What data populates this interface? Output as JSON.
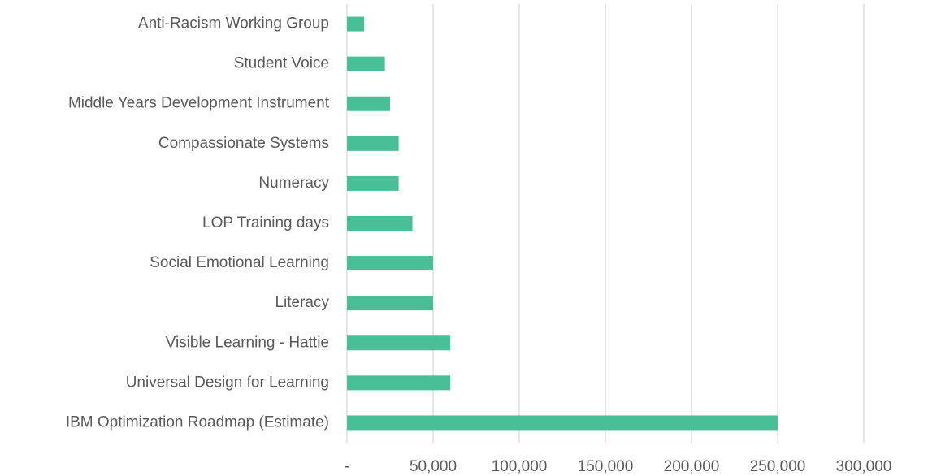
{
  "chart_data": {
    "type": "bar",
    "orientation": "horizontal",
    "categories": [
      "Anti-Racism Working Group",
      "Student Voice",
      "Middle Years Development Instrument",
      "Compassionate Systems",
      "Numeracy",
      "LOP Training days",
      "Social Emotional Learning",
      "Literacy",
      "Visible Learning - Hattie",
      "Universal Design for Learning",
      "IBM Optimization Roadmap (Estimate)"
    ],
    "values": [
      10000,
      22000,
      25000,
      30000,
      30000,
      38000,
      50000,
      50000,
      60000,
      60000,
      250000
    ],
    "color": "#48bf97",
    "xlim": [
      0,
      300000
    ],
    "xticks": [
      {
        "value": 0,
        "label": "-"
      },
      {
        "value": 50000,
        "label": "50,000"
      },
      {
        "value": 100000,
        "label": "100,000"
      },
      {
        "value": 150000,
        "label": "150,000"
      },
      {
        "value": 200000,
        "label": "200,000"
      },
      {
        "value": 250000,
        "label": "250,000"
      },
      {
        "value": 300000,
        "label": "300,000"
      }
    ],
    "grid": true
  }
}
